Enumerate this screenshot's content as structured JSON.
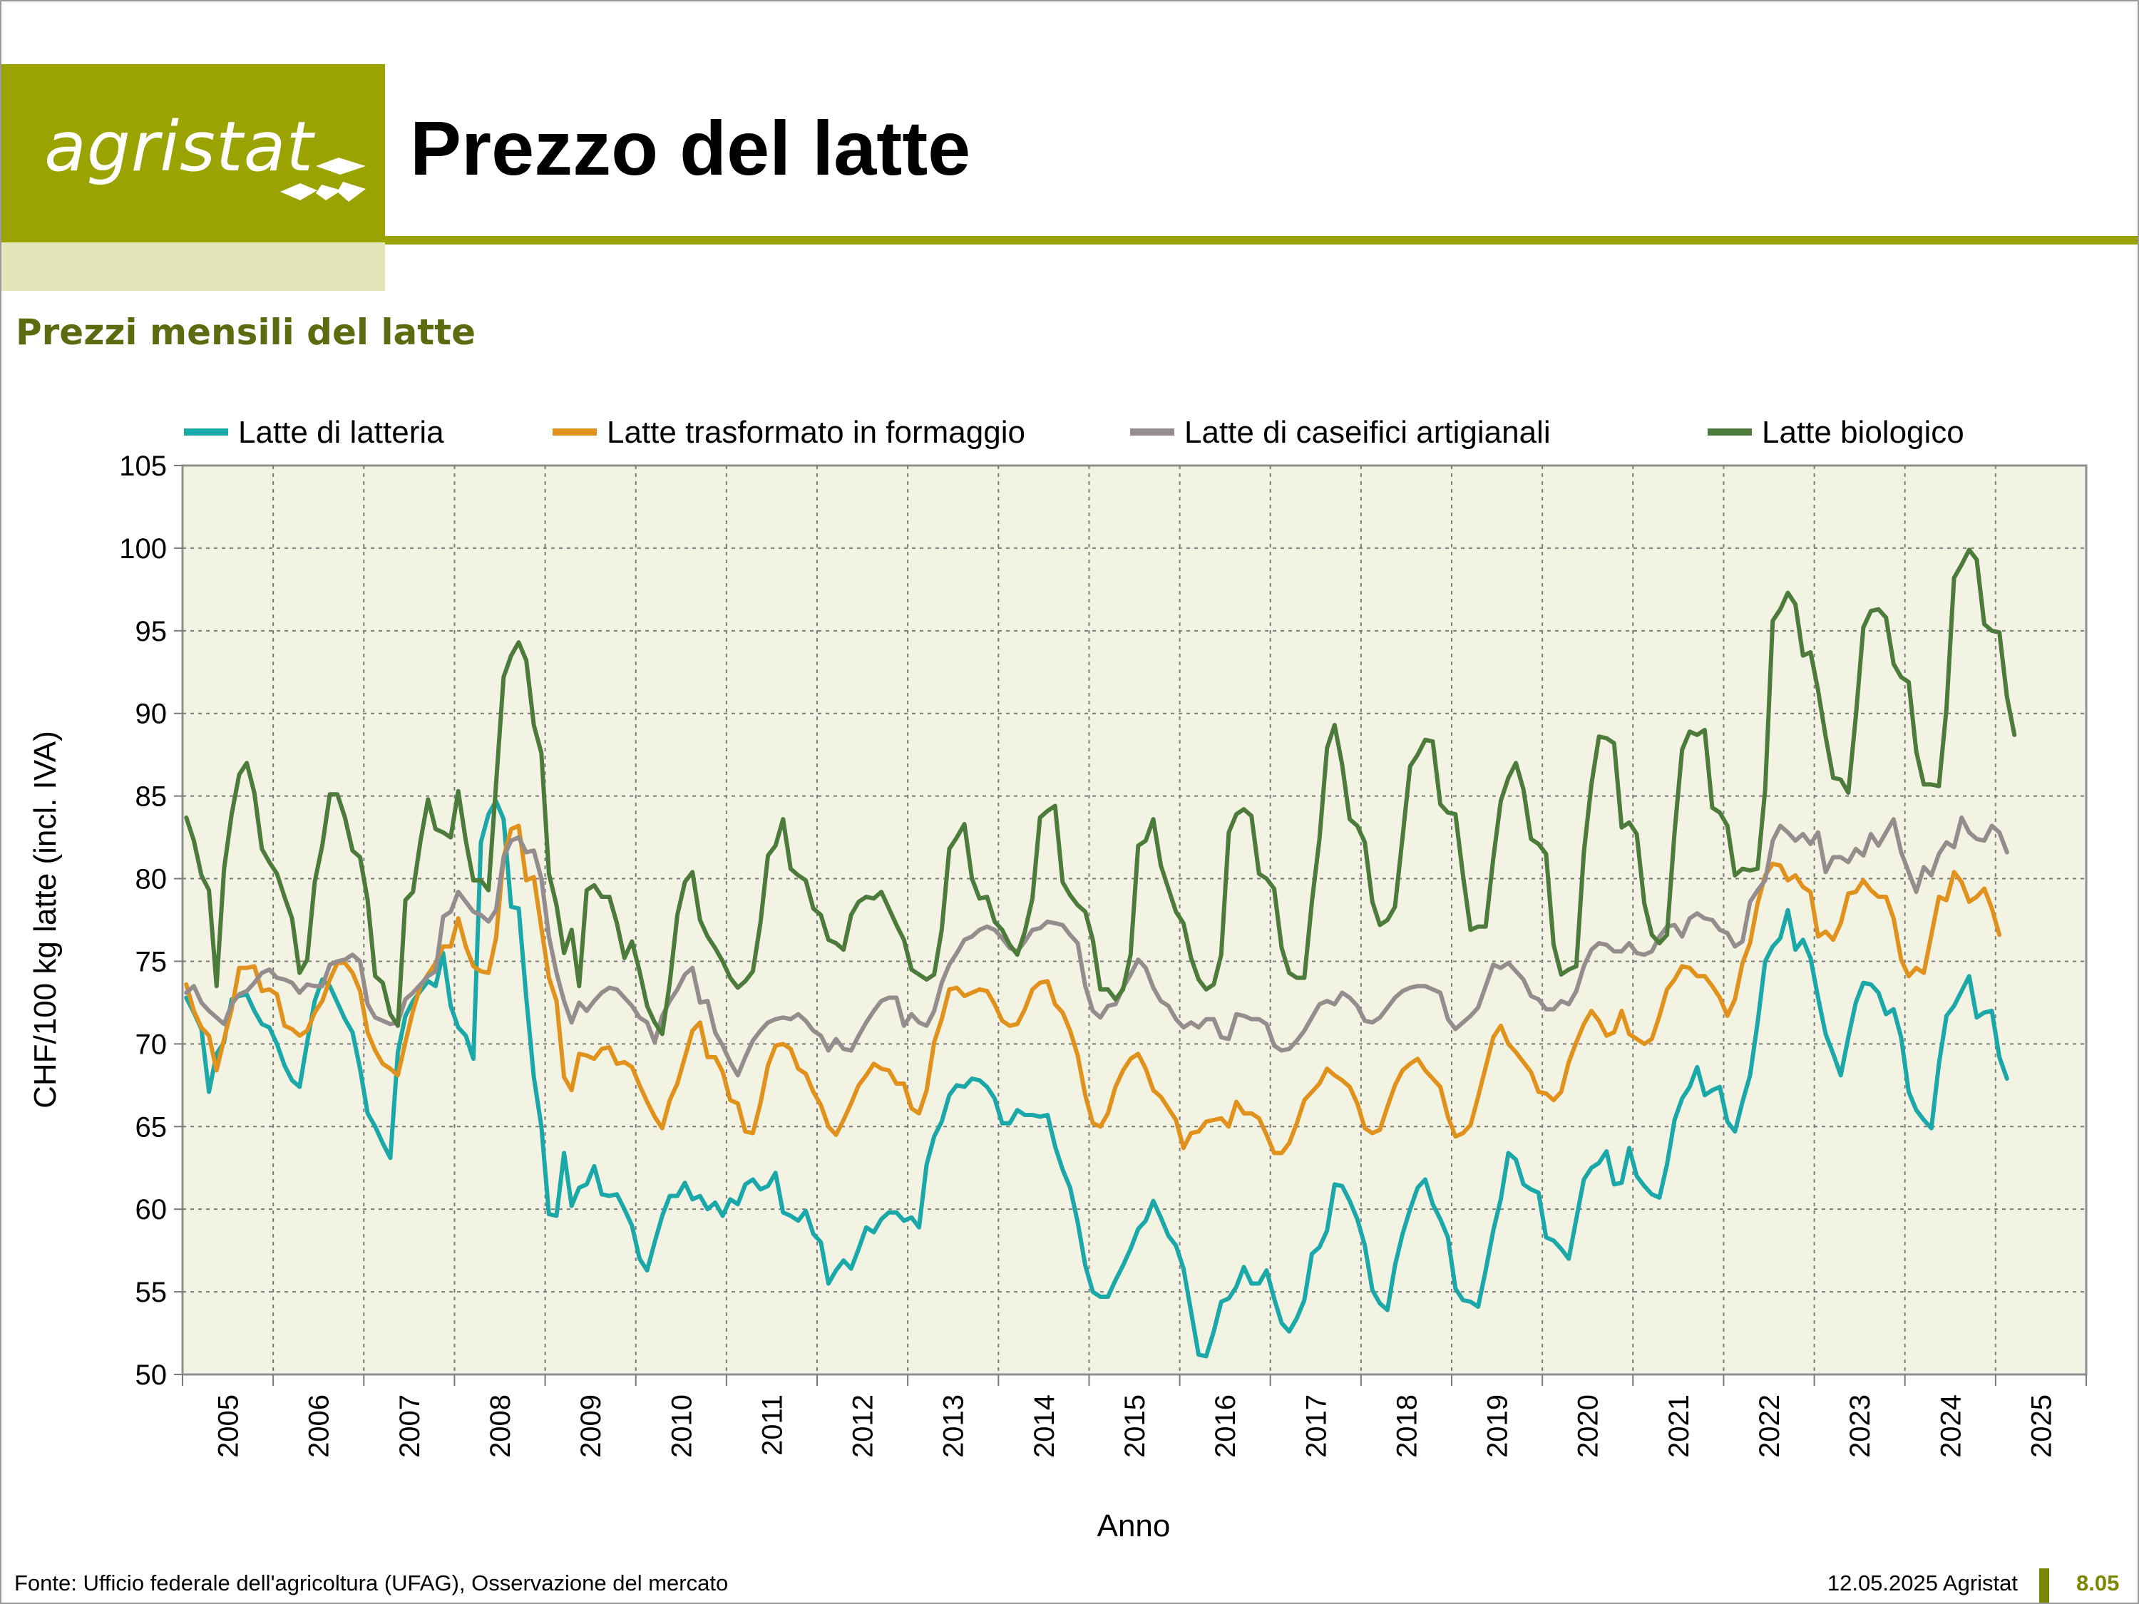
{
  "header": {
    "logo_text": "agristat",
    "title": "Prezzo del latte",
    "subtitle": "Prezzi mensili del latte"
  },
  "footer": {
    "source": "Fonte: Ufficio federale dell'agricoltura (UFAG), Osservazione del mercato",
    "date": "12.05.2025 Agristat",
    "page": "8.05"
  },
  "colors": {
    "brand": "#9aa300",
    "plot_bg": "#f3f3e3"
  },
  "chart_data": {
    "type": "line",
    "title": "Prezzi mensili del latte",
    "xlabel": "Anno",
    "ylabel": "CHF/100 kg latte (incl. IVA)",
    "ylim": [
      50,
      105
    ],
    "yticks": [
      "50",
      "55",
      "60",
      "65",
      "70",
      "75",
      "80",
      "85",
      "90",
      "95",
      "100",
      "105"
    ],
    "x_start": "2005-01",
    "x_end": "2026-01",
    "xticks": [
      "2005",
      "2006",
      "2007",
      "2008",
      "2009",
      "2010",
      "2011",
      "2012",
      "2013",
      "2014",
      "2015",
      "2016",
      "2017",
      "2018",
      "2019",
      "2020",
      "2021",
      "2022",
      "2023",
      "2024",
      "2025"
    ],
    "grid": true,
    "legend": "top",
    "series": [
      {
        "name": "Latte di latteria",
        "color": "#1aa8a8",
        "values": [
          72.8,
          71.9,
          70.9,
          67.1,
          69.4,
          70.1,
          72.7,
          72.9,
          73.0,
          72.0,
          71.2,
          71.0,
          70.0,
          68.7,
          67.8,
          67.4,
          70.1,
          72.6,
          73.9,
          73.5,
          72.5,
          71.5,
          70.7,
          68.5,
          65.8,
          65.0,
          64.0,
          63.1,
          69.5,
          71.7,
          72.6,
          73.2,
          73.8,
          73.5,
          75.5,
          72.3,
          71.0,
          70.5,
          69.1,
          82.2,
          83.9,
          84.7,
          83.6,
          78.3,
          78.2,
          72.8,
          68.0,
          65.0,
          59.7,
          59.6,
          63.4,
          60.2,
          61.3,
          61.5,
          62.6,
          60.9,
          60.8,
          60.9,
          60.0,
          59.0,
          57.0,
          56.3,
          58.0,
          59.6,
          60.8,
          60.8,
          61.6,
          60.6,
          60.8,
          60.0,
          60.4,
          59.6,
          60.6,
          60.3,
          61.5,
          61.8,
          61.2,
          61.4,
          62.2,
          59.8,
          59.6,
          59.3,
          59.9,
          58.5,
          58.0,
          55.5,
          56.3,
          56.9,
          56.4,
          57.6,
          58.9,
          58.6,
          59.4,
          59.8,
          59.8,
          59.3,
          59.5,
          58.9,
          62.7,
          64.4,
          65.3,
          66.9,
          67.5,
          67.4,
          67.9,
          67.8,
          67.4,
          66.7,
          65.2,
          65.2,
          66.0,
          65.7,
          65.7,
          65.6,
          65.7,
          63.8,
          62.4,
          61.3,
          59.2,
          56.6,
          55.0,
          54.7,
          54.7,
          55.7,
          56.6,
          57.6,
          58.8,
          59.3,
          60.5,
          59.5,
          58.4,
          57.8,
          56.4,
          53.8,
          51.2,
          51.1,
          52.6,
          54.4,
          54.6,
          55.3,
          56.5,
          55.5,
          55.5,
          56.3,
          54.6,
          53.1,
          52.6,
          53.4,
          54.5,
          57.3,
          57.7,
          58.7,
          61.5,
          61.4,
          60.5,
          59.4,
          57.8,
          55.1,
          54.3,
          53.9,
          56.6,
          58.5,
          60.0,
          61.3,
          61.8,
          60.3,
          59.4,
          58.3,
          55.2,
          54.5,
          54.4,
          54.1,
          56.3,
          58.7,
          60.6,
          63.4,
          63.0,
          61.5,
          61.2,
          61.0,
          58.3,
          58.1,
          57.6,
          57.0,
          59.4,
          61.8,
          62.5,
          62.8,
          63.5,
          61.5,
          61.6,
          63.7,
          62.0,
          61.4,
          60.9,
          60.7,
          62.7,
          65.4,
          66.7,
          67.4,
          68.6,
          66.9,
          67.2,
          67.4,
          65.3,
          64.7,
          66.5,
          68.1,
          71.3,
          75.0,
          75.9,
          76.4,
          78.1,
          75.7,
          76.3,
          75.2,
          72.8,
          70.6,
          69.4,
          68.1,
          70.4,
          72.5,
          73.7,
          73.6,
          73.1,
          71.8,
          72.1,
          70.4,
          67.1,
          66.0,
          65.4,
          64.9,
          68.8,
          71.7,
          72.3,
          73.2,
          74.1,
          71.6,
          71.9,
          72.0,
          69.2,
          67.9
        ]
      },
      {
        "name": "Latte trasformato in formaggio",
        "color": "#e0921c",
        "values": [
          73.6,
          72.0,
          71.0,
          70.5,
          68.4,
          70.3,
          72.1,
          74.6,
          74.6,
          74.7,
          73.2,
          73.3,
          73.0,
          71.1,
          70.9,
          70.5,
          70.8,
          71.9,
          72.6,
          73.9,
          74.9,
          74.9,
          74.3,
          73.2,
          70.7,
          69.6,
          68.8,
          68.5,
          68.1,
          70.1,
          72.0,
          73.5,
          74.2,
          74.9,
          75.9,
          75.9,
          77.6,
          75.9,
          74.7,
          74.4,
          74.3,
          76.4,
          81.3,
          83.0,
          83.2,
          79.9,
          80.1,
          77.0,
          74.0,
          72.6,
          68.0,
          67.2,
          69.4,
          69.3,
          69.1,
          69.7,
          69.8,
          68.8,
          68.9,
          68.6,
          67.5,
          66.5,
          65.6,
          64.9,
          66.6,
          67.6,
          69.2,
          70.8,
          71.3,
          69.2,
          69.2,
          68.3,
          66.6,
          66.4,
          64.7,
          64.6,
          66.4,
          68.7,
          69.9,
          70.0,
          69.7,
          68.5,
          68.2,
          67.1,
          66.3,
          65.0,
          64.5,
          65.4,
          66.4,
          67.5,
          68.1,
          68.8,
          68.5,
          68.4,
          67.6,
          67.6,
          66.1,
          65.8,
          67.2,
          70.1,
          71.5,
          73.3,
          73.4,
          72.9,
          73.1,
          73.3,
          73.2,
          72.4,
          71.4,
          71.1,
          71.2,
          72.1,
          73.3,
          73.7,
          73.8,
          72.4,
          71.9,
          70.8,
          69.3,
          66.9,
          65.2,
          65.0,
          65.8,
          67.4,
          68.4,
          69.1,
          69.4,
          68.5,
          67.2,
          66.8,
          66.1,
          65.4,
          63.7,
          64.6,
          64.7,
          65.3,
          65.4,
          65.5,
          65.0,
          66.5,
          65.8,
          65.8,
          65.5,
          64.5,
          63.4,
          63.4,
          64.0,
          65.2,
          66.6,
          67.1,
          67.6,
          68.5,
          68.1,
          67.8,
          67.4,
          66.4,
          64.9,
          64.6,
          64.8,
          66.2,
          67.5,
          68.4,
          68.8,
          69.1,
          68.4,
          67.9,
          67.4,
          65.6,
          64.4,
          64.6,
          65.1,
          66.8,
          68.6,
          70.4,
          71.1,
          70.0,
          69.5,
          68.9,
          68.3,
          67.1,
          67.0,
          66.6,
          67.1,
          68.9,
          70.1,
          71.2,
          72.0,
          71.4,
          70.5,
          70.7,
          72.0,
          70.6,
          70.3,
          70.0,
          70.3,
          71.7,
          73.3,
          73.9,
          74.7,
          74.6,
          74.1,
          74.1,
          73.5,
          72.8,
          71.7,
          72.7,
          74.9,
          76.1,
          78.5,
          80.2,
          80.9,
          80.8,
          79.9,
          80.2,
          79.5,
          79.2,
          76.5,
          76.8,
          76.3,
          77.3,
          79.1,
          79.2,
          79.9,
          79.3,
          78.9,
          78.9,
          77.6,
          75.1,
          74.1,
          74.6,
          74.3,
          76.6,
          78.9,
          78.7,
          80.4,
          79.8,
          78.6,
          78.9,
          79.4,
          78.2,
          76.6
        ]
      },
      {
        "name": "Latte di caseifici artigianali",
        "color": "#958d8d",
        "values": [
          73.1,
          73.5,
          72.5,
          72.0,
          71.6,
          71.2,
          72.4,
          73.0,
          73.2,
          73.7,
          74.3,
          74.5,
          74.0,
          73.9,
          73.7,
          73.1,
          73.6,
          73.5,
          73.5,
          74.8,
          75.0,
          75.1,
          75.4,
          75.0,
          72.4,
          71.6,
          71.4,
          71.2,
          71.3,
          72.7,
          73.1,
          73.6,
          74.1,
          74.4,
          77.7,
          78.0,
          79.2,
          78.6,
          78.0,
          77.8,
          77.4,
          78.1,
          81.3,
          82.3,
          82.5,
          81.6,
          81.7,
          80.0,
          76.5,
          74.3,
          72.6,
          71.3,
          72.5,
          72.0,
          72.6,
          73.1,
          73.4,
          73.3,
          72.8,
          72.3,
          71.6,
          71.3,
          70.1,
          71.7,
          72.6,
          73.3,
          74.2,
          74.6,
          72.5,
          72.6,
          70.7,
          69.9,
          68.9,
          68.1,
          69.2,
          70.2,
          70.8,
          71.3,
          71.5,
          71.6,
          71.5,
          71.8,
          71.4,
          70.8,
          70.5,
          69.6,
          70.3,
          69.7,
          69.6,
          70.5,
          71.3,
          72.0,
          72.6,
          72.8,
          72.8,
          71.1,
          71.8,
          71.3,
          71.1,
          72.0,
          73.7,
          74.8,
          75.5,
          76.3,
          76.5,
          76.9,
          77.1,
          76.9,
          76.4,
          75.8,
          75.6,
          76.2,
          76.9,
          77.0,
          77.4,
          77.3,
          77.2,
          76.6,
          76.1,
          73.5,
          72.0,
          71.6,
          72.3,
          72.4,
          73.4,
          74.2,
          75.1,
          74.6,
          73.4,
          72.6,
          72.3,
          71.5,
          71.0,
          71.3,
          71.0,
          71.5,
          71.5,
          70.4,
          70.3,
          71.8,
          71.7,
          71.5,
          71.5,
          71.2,
          69.9,
          69.6,
          69.7,
          70.2,
          70.8,
          71.6,
          72.4,
          72.6,
          72.4,
          73.1,
          72.8,
          72.3,
          71.4,
          71.3,
          71.6,
          72.2,
          72.8,
          73.2,
          73.4,
          73.5,
          73.5,
          73.3,
          73.1,
          71.5,
          70.9,
          71.3,
          71.7,
          72.2,
          73.5,
          74.8,
          74.6,
          74.9,
          74.4,
          73.9,
          72.9,
          72.7,
          72.1,
          72.1,
          72.6,
          72.4,
          73.2,
          74.7,
          75.7,
          76.1,
          76.0,
          75.6,
          75.6,
          76.1,
          75.5,
          75.4,
          75.6,
          76.5,
          77.1,
          77.2,
          76.5,
          77.6,
          77.9,
          77.6,
          77.5,
          76.9,
          76.7,
          75.9,
          76.2,
          78.6,
          79.3,
          79.9,
          82.3,
          83.2,
          82.8,
          82.3,
          82.7,
          82.1,
          82.8,
          80.4,
          81.3,
          81.3,
          81.0,
          81.8,
          81.4,
          82.7,
          82.0,
          82.8,
          83.6,
          81.6,
          80.4,
          79.2,
          80.7,
          80.2,
          81.5,
          82.2,
          81.9,
          83.7,
          82.8,
          82.4,
          82.3,
          83.2,
          82.8,
          81.6
        ]
      },
      {
        "name": "Latte biologico",
        "color": "#4c7b3c",
        "values": [
          83.7,
          82.3,
          80.2,
          79.3,
          73.5,
          80.6,
          83.9,
          86.3,
          87.0,
          85.2,
          81.8,
          81.0,
          80.3,
          78.9,
          77.6,
          74.3,
          75.1,
          79.8,
          82.0,
          85.1,
          85.1,
          83.7,
          81.7,
          81.3,
          78.7,
          74.1,
          73.7,
          71.8,
          71.1,
          78.7,
          79.2,
          82.3,
          84.8,
          83.0,
          82.8,
          82.5,
          85.3,
          82.3,
          79.9,
          79.9,
          79.3,
          85.7,
          92.2,
          93.5,
          94.3,
          93.2,
          89.3,
          87.6,
          80.3,
          78.4,
          75.5,
          76.9,
          73.5,
          79.3,
          79.6,
          78.9,
          78.9,
          77.3,
          75.2,
          76.2,
          74.4,
          72.3,
          71.3,
          70.6,
          73.7,
          77.8,
          79.8,
          80.4,
          77.5,
          76.5,
          75.8,
          75.0,
          74.0,
          73.4,
          73.8,
          74.4,
          77.3,
          81.4,
          82.0,
          83.6,
          80.6,
          80.2,
          79.9,
          78.2,
          77.8,
          76.3,
          76.1,
          75.7,
          77.8,
          78.6,
          78.9,
          78.8,
          79.2,
          78.2,
          77.2,
          76.3,
          74.5,
          74.2,
          73.9,
          74.2,
          76.9,
          81.8,
          82.5,
          83.3,
          80.0,
          78.8,
          78.9,
          77.4,
          76.9,
          76.0,
          75.4,
          76.8,
          78.8,
          83.7,
          84.1,
          84.4,
          79.8,
          79.0,
          78.4,
          78.0,
          76.3,
          73.3,
          73.3,
          72.7,
          73.3,
          75.4,
          82.0,
          82.3,
          83.6,
          80.8,
          79.4,
          78.0,
          77.3,
          75.2,
          73.9,
          73.3,
          73.6,
          75.4,
          82.8,
          83.9,
          84.2,
          83.8,
          80.3,
          80.0,
          79.4,
          75.8,
          74.3,
          74.0,
          74.0,
          78.6,
          82.4,
          87.9,
          89.3,
          86.9,
          83.6,
          83.2,
          82.2,
          78.6,
          77.2,
          77.5,
          78.3,
          82.5,
          86.8,
          87.5,
          88.4,
          88.3,
          84.5,
          84.0,
          83.9,
          80.2,
          76.9,
          77.1,
          77.1,
          81.2,
          84.7,
          86.1,
          87.0,
          85.4,
          82.4,
          82.1,
          81.5,
          76.0,
          74.2,
          74.5,
          74.7,
          81.6,
          85.7,
          88.6,
          88.5,
          88.2,
          83.1,
          83.4,
          82.7,
          78.5,
          76.6,
          76.1,
          76.6,
          82.8,
          87.8,
          88.9,
          88.7,
          89.0,
          84.3,
          84.0,
          83.2,
          80.2,
          80.6,
          80.5,
          80.6,
          85.4,
          95.6,
          96.3,
          97.3,
          96.6,
          93.5,
          93.7,
          91.4,
          88.6,
          86.1,
          86.0,
          85.2,
          89.8,
          95.2,
          96.2,
          96.3,
          95.8,
          93.0,
          92.2,
          91.9,
          87.7,
          85.7,
          85.7,
          85.6,
          90.3,
          98.2,
          99.0,
          99.9,
          99.3,
          95.4,
          95.0,
          94.9,
          91.0,
          88.7
        ]
      }
    ]
  }
}
